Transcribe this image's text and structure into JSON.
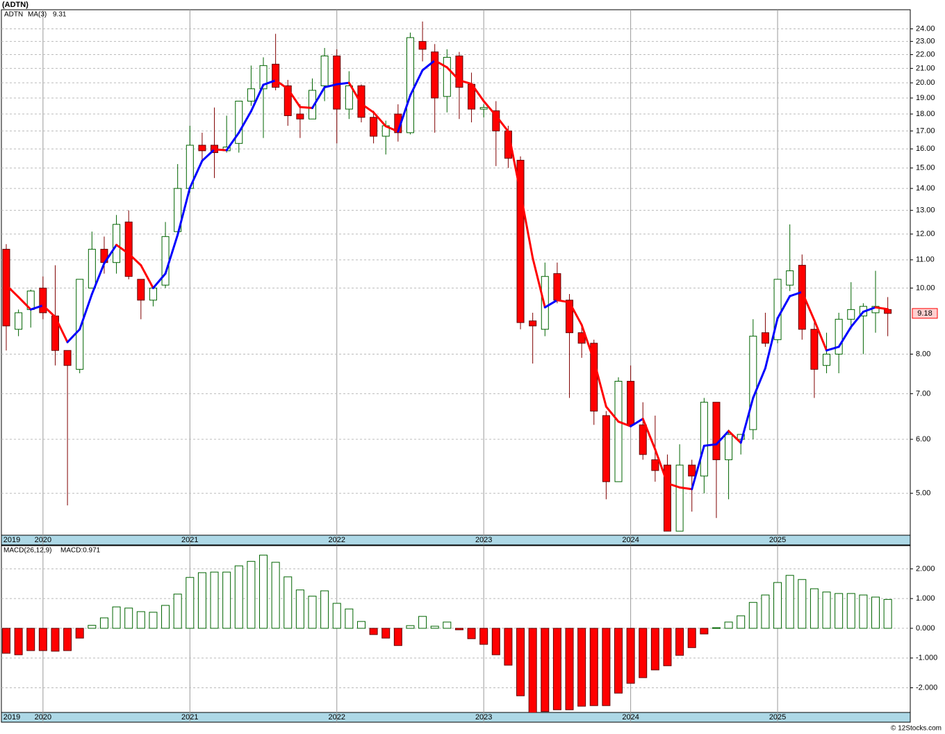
{
  "source": "© 12Stocks.com",
  "chart_data": [
    {
      "type": "candlestick",
      "title": "(ADTN)",
      "ticker": "ADTN",
      "log_scale": true,
      "grid": true,
      "up_color": "#006400",
      "down_color": "#ff0000",
      "last_label": "9.18",
      "categories": [
        "2019",
        null,
        null,
        "2020",
        null,
        null,
        null,
        null,
        null,
        null,
        null,
        null,
        null,
        null,
        null,
        "2021",
        null,
        null,
        null,
        null,
        null,
        null,
        null,
        null,
        null,
        null,
        null,
        "2022",
        null,
        null,
        null,
        null,
        null,
        null,
        null,
        null,
        null,
        null,
        null,
        "2023",
        null,
        null,
        null,
        null,
        null,
        null,
        null,
        null,
        null,
        null,
        null,
        "2024",
        null,
        null,
        null,
        null,
        null,
        null,
        null,
        null,
        null,
        null,
        null,
        "2025",
        null,
        null,
        null,
        null,
        null,
        null,
        null,
        null,
        null
      ],
      "open": [
        11.4,
        8.7,
        9.3,
        10.0,
        9.1,
        8.1,
        7.6,
        10.0,
        11.4,
        10.9,
        12.5,
        10.3,
        9.6,
        10.1,
        12.1,
        14.0,
        16.2,
        16.2,
        15.9,
        16.3,
        18.8,
        19.6,
        21.3,
        19.8,
        18.0,
        17.7,
        19.8,
        21.9,
        18.3,
        19.8,
        17.8,
        16.7,
        18.0,
        16.9,
        23.0,
        22.2,
        19.1,
        21.9,
        19.9,
        18.3,
        18.2,
        17.0,
        15.4,
        8.95,
        8.7,
        10.5,
        9.6,
        8.6,
        8.3,
        6.5,
        5.2,
        7.3,
        6.3,
        5.6,
        5.5,
        4.4,
        5.5,
        5.3,
        6.8,
        5.6,
        6.0,
        6.2,
        8.6,
        8.4,
        10.1,
        10.8,
        8.7,
        7.7,
        8.0,
        9.0,
        9.1,
        9.2,
        9.3
      ],
      "high": [
        11.6,
        9.3,
        9.95,
        10.4,
        10.8,
        8.1,
        10.3,
        12.1,
        11.9,
        12.8,
        13.0,
        10.3,
        10.0,
        12.5,
        15.2,
        17.3,
        16.9,
        18.4,
        17.9,
        18.8,
        21.2,
        21.8,
        23.6,
        20.2,
        18.6,
        20.3,
        22.5,
        22.4,
        20.8,
        19.9,
        18.2,
        17.6,
        18.6,
        23.7,
        24.6,
        22.8,
        22.4,
        22.2,
        20.7,
        18.6,
        18.8,
        17.3,
        15.6,
        9.2,
        10.9,
        10.9,
        9.8,
        8.8,
        8.4,
        6.6,
        7.4,
        7.7,
        6.8,
        6.5,
        5.7,
        5.9,
        5.6,
        6.9,
        6.8,
        6.2,
        6.1,
        9.0,
        9.2,
        10.3,
        12.4,
        11.2,
        9.0,
        8.6,
        9.2,
        10.2,
        9.5,
        10.6,
        9.7
      ],
      "low": [
        8.1,
        8.5,
        8.75,
        9.0,
        7.7,
        4.8,
        7.5,
        10.0,
        10.5,
        10.5,
        10.3,
        9.0,
        9.4,
        10.0,
        12.0,
        13.8,
        15.4,
        14.5,
        15.8,
        15.8,
        18.5,
        16.6,
        19.5,
        17.3,
        16.6,
        17.7,
        18.8,
        16.3,
        17.7,
        17.5,
        16.3,
        15.7,
        16.4,
        16.8,
        21.5,
        16.9,
        18.1,
        17.7,
        17.5,
        17.8,
        15.1,
        15.0,
        8.7,
        7.75,
        8.5,
        9.5,
        6.9,
        7.9,
        6.3,
        4.9,
        5.2,
        6.3,
        5.6,
        5.2,
        4.4,
        4.4,
        4.7,
        5.0,
        4.6,
        4.9,
        5.7,
        6.0,
        8.2,
        8.3,
        9.9,
        8.4,
        6.9,
        7.5,
        7.5,
        8.7,
        8.0,
        8.6,
        8.5
      ],
      "close": [
        8.8,
        9.2,
        9.9,
        9.2,
        8.1,
        7.7,
        10.3,
        11.4,
        10.9,
        12.4,
        10.4,
        9.6,
        10.0,
        11.9,
        14.0,
        16.2,
        15.9,
        15.8,
        16.1,
        18.8,
        19.6,
        21.2,
        19.7,
        17.9,
        17.7,
        19.5,
        21.9,
        18.3,
        19.8,
        17.8,
        16.7,
        17.3,
        16.9,
        23.3,
        22.4,
        19.0,
        21.8,
        19.7,
        18.3,
        18.4,
        17.0,
        15.5,
        8.9,
        8.8,
        10.4,
        9.6,
        8.6,
        8.3,
        6.6,
        5.2,
        7.3,
        6.3,
        5.7,
        5.4,
        4.4,
        5.5,
        5.3,
        6.8,
        5.6,
        6.1,
        6.1,
        8.5,
        8.3,
        10.3,
        10.6,
        8.7,
        7.6,
        8.0,
        9.0,
        9.3,
        9.4,
        9.4,
        9.18
      ],
      "ma": {
        "name": "MA(3)",
        "value_label": "9.31",
        "up_color": "#0000ff",
        "down_color": "#ff0000",
        "values": [
          10.1,
          9.7,
          9.3,
          9.43,
          9.07,
          8.33,
          8.7,
          9.8,
          10.87,
          11.57,
          11.23,
          10.8,
          10.0,
          10.5,
          11.97,
          14.03,
          15.37,
          15.97,
          15.93,
          16.9,
          18.17,
          19.87,
          20.17,
          19.6,
          18.43,
          18.37,
          19.7,
          19.9,
          20.0,
          18.63,
          18.1,
          17.27,
          16.97,
          19.17,
          20.87,
          21.57,
          21.07,
          20.17,
          19.93,
          18.8,
          17.9,
          16.97,
          13.8,
          11.07,
          9.37,
          9.6,
          9.53,
          8.83,
          7.83,
          6.7,
          6.37,
          6.27,
          6.43,
          5.8,
          5.17,
          5.1,
          5.07,
          5.87,
          5.9,
          6.17,
          5.93,
          6.9,
          7.63,
          9.03,
          9.73,
          9.87,
          8.97,
          8.1,
          8.2,
          8.77,
          9.23,
          9.37,
          9.31
        ]
      },
      "ylim": [
        4.34,
        25.6
      ],
      "yticks": [
        {
          "value": 5,
          "label": "5.00"
        },
        {
          "value": 6,
          "label": "6.00"
        },
        {
          "value": 7,
          "label": "7.00"
        },
        {
          "value": 8,
          "label": "8.00"
        },
        {
          "value": 10,
          "label": "10.00"
        },
        {
          "value": 11,
          "label": "11.00"
        },
        {
          "value": 12,
          "label": "12.00"
        },
        {
          "value": 13,
          "label": "13.00"
        },
        {
          "value": 14,
          "label": "14.00"
        },
        {
          "value": 15,
          "label": "15.00"
        },
        {
          "value": 16,
          "label": "16.00"
        },
        {
          "value": 17,
          "label": "17.00"
        },
        {
          "value": 18,
          "label": "18.00"
        },
        {
          "value": 19,
          "label": "19.00"
        },
        {
          "value": 20,
          "label": "20.00"
        },
        {
          "value": 21,
          "label": "21.00"
        },
        {
          "value": 22,
          "label": "22.00"
        },
        {
          "value": 23,
          "label": "23.00"
        },
        {
          "value": 24,
          "label": "24.00"
        }
      ]
    },
    {
      "type": "macd",
      "title": "MACD(26,12,9)",
      "value_label": "MACD:0.971",
      "grid": true,
      "up_color": "#006400",
      "down_color": "#ff0000",
      "categories": [
        "2019",
        null,
        null,
        "2020",
        null,
        null,
        null,
        null,
        null,
        null,
        null,
        null,
        null,
        null,
        null,
        "2021",
        null,
        null,
        null,
        null,
        null,
        null,
        null,
        null,
        null,
        null,
        null,
        "2022",
        null,
        null,
        null,
        null,
        null,
        null,
        null,
        null,
        null,
        null,
        null,
        "2023",
        null,
        null,
        null,
        null,
        null,
        null,
        null,
        null,
        null,
        null,
        null,
        "2024",
        null,
        null,
        null,
        null,
        null,
        null,
        null,
        null,
        null,
        null,
        null,
        "2025",
        null,
        null,
        null,
        null,
        null,
        null,
        null,
        null,
        null
      ],
      "values": [
        -0.84,
        -0.89,
        -0.75,
        -0.75,
        -0.77,
        -0.75,
        -0.33,
        0.1,
        0.35,
        0.72,
        0.68,
        0.56,
        0.54,
        0.77,
        1.15,
        1.71,
        1.87,
        1.89,
        1.89,
        2.1,
        2.25,
        2.46,
        2.22,
        1.73,
        1.29,
        1.08,
        1.26,
        0.84,
        0.65,
        0.23,
        -0.21,
        -0.33,
        -0.58,
        0.09,
        0.4,
        0.07,
        0.21,
        -0.05,
        -0.35,
        -0.54,
        -0.89,
        -1.24,
        -2.27,
        -2.85,
        -2.8,
        -2.74,
        -2.74,
        -2.62,
        -2.6,
        -2.6,
        -2.18,
        -1.85,
        -1.66,
        -1.4,
        -1.26,
        -0.91,
        -0.65,
        -0.19,
        0.02,
        0.21,
        0.42,
        0.87,
        1.12,
        1.54,
        1.78,
        1.64,
        1.33,
        1.22,
        1.17,
        1.17,
        1.12,
        1.05,
        0.971
      ],
      "ylim": [
        -2.83,
        2.78
      ],
      "yticks": [
        {
          "value": 2,
          "label": "2.000"
        },
        {
          "value": 1,
          "label": "1.000"
        },
        {
          "value": 0,
          "label": "0.000"
        },
        {
          "value": -1,
          "label": "-1.000"
        },
        {
          "value": -2,
          "label": "-2.000"
        }
      ]
    }
  ]
}
